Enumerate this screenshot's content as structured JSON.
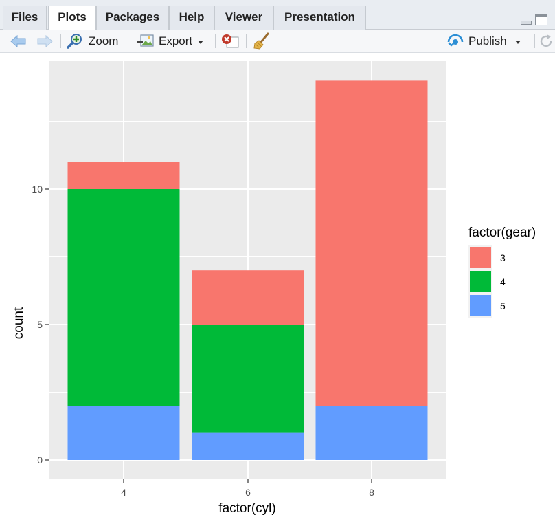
{
  "tabs": [
    {
      "label": "Files",
      "active": false
    },
    {
      "label": "Plots",
      "active": true
    },
    {
      "label": "Packages",
      "active": false
    },
    {
      "label": "Help",
      "active": false
    },
    {
      "label": "Viewer",
      "active": false
    },
    {
      "label": "Presentation",
      "active": false
    }
  ],
  "toolbar": {
    "zoom_label": "Zoom",
    "export_label": "Export",
    "publish_label": "Publish"
  },
  "colors": {
    "gear3": "#F8766D",
    "gear4": "#00BA38",
    "gear5": "#619CFF",
    "panel": "#EBEBEB",
    "grid": "#FFFFFF"
  },
  "chart_data": {
    "type": "bar",
    "stacked": true,
    "categories": [
      "4",
      "6",
      "8"
    ],
    "series": [
      {
        "name": "3",
        "values": [
          1,
          2,
          12
        ]
      },
      {
        "name": "4",
        "values": [
          8,
          4,
          0
        ]
      },
      {
        "name": "5",
        "values": [
          2,
          1,
          2
        ]
      }
    ],
    "xlabel": "factor(cyl)",
    "ylabel": "count",
    "legend_title": "factor(gear)",
    "legend_position": "right",
    "ylim": [
      0,
      14
    ],
    "yticks": [
      0,
      5,
      10
    ],
    "grid": true
  }
}
